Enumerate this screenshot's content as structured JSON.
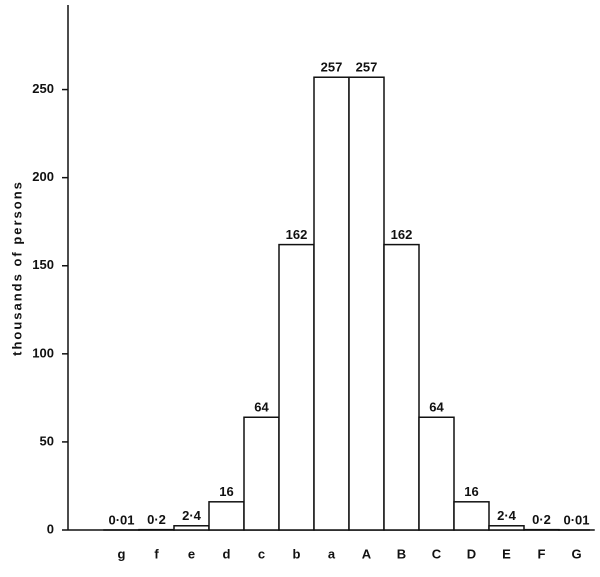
{
  "chart_data": {
    "type": "bar",
    "y_label": "thousands of persons",
    "categories": [
      "g",
      "f",
      "e",
      "d",
      "c",
      "b",
      "a",
      "A",
      "B",
      "C",
      "D",
      "E",
      "F",
      "G"
    ],
    "values": [
      0.01,
      0.2,
      2.4,
      16,
      64,
      162,
      257,
      257,
      162,
      64,
      16,
      2.4,
      0.2,
      0.01
    ],
    "value_labels": [
      "0·01",
      "0·2",
      "2·4",
      "16",
      "64",
      "162",
      "257",
      "257",
      "162",
      "64",
      "16",
      "2·4",
      "0·2",
      "0·01"
    ],
    "color": "#ffffff",
    "ylim": [
      0,
      298
    ],
    "yticks": [
      0,
      50,
      100,
      150,
      200,
      250
    ],
    "grid": false
  }
}
